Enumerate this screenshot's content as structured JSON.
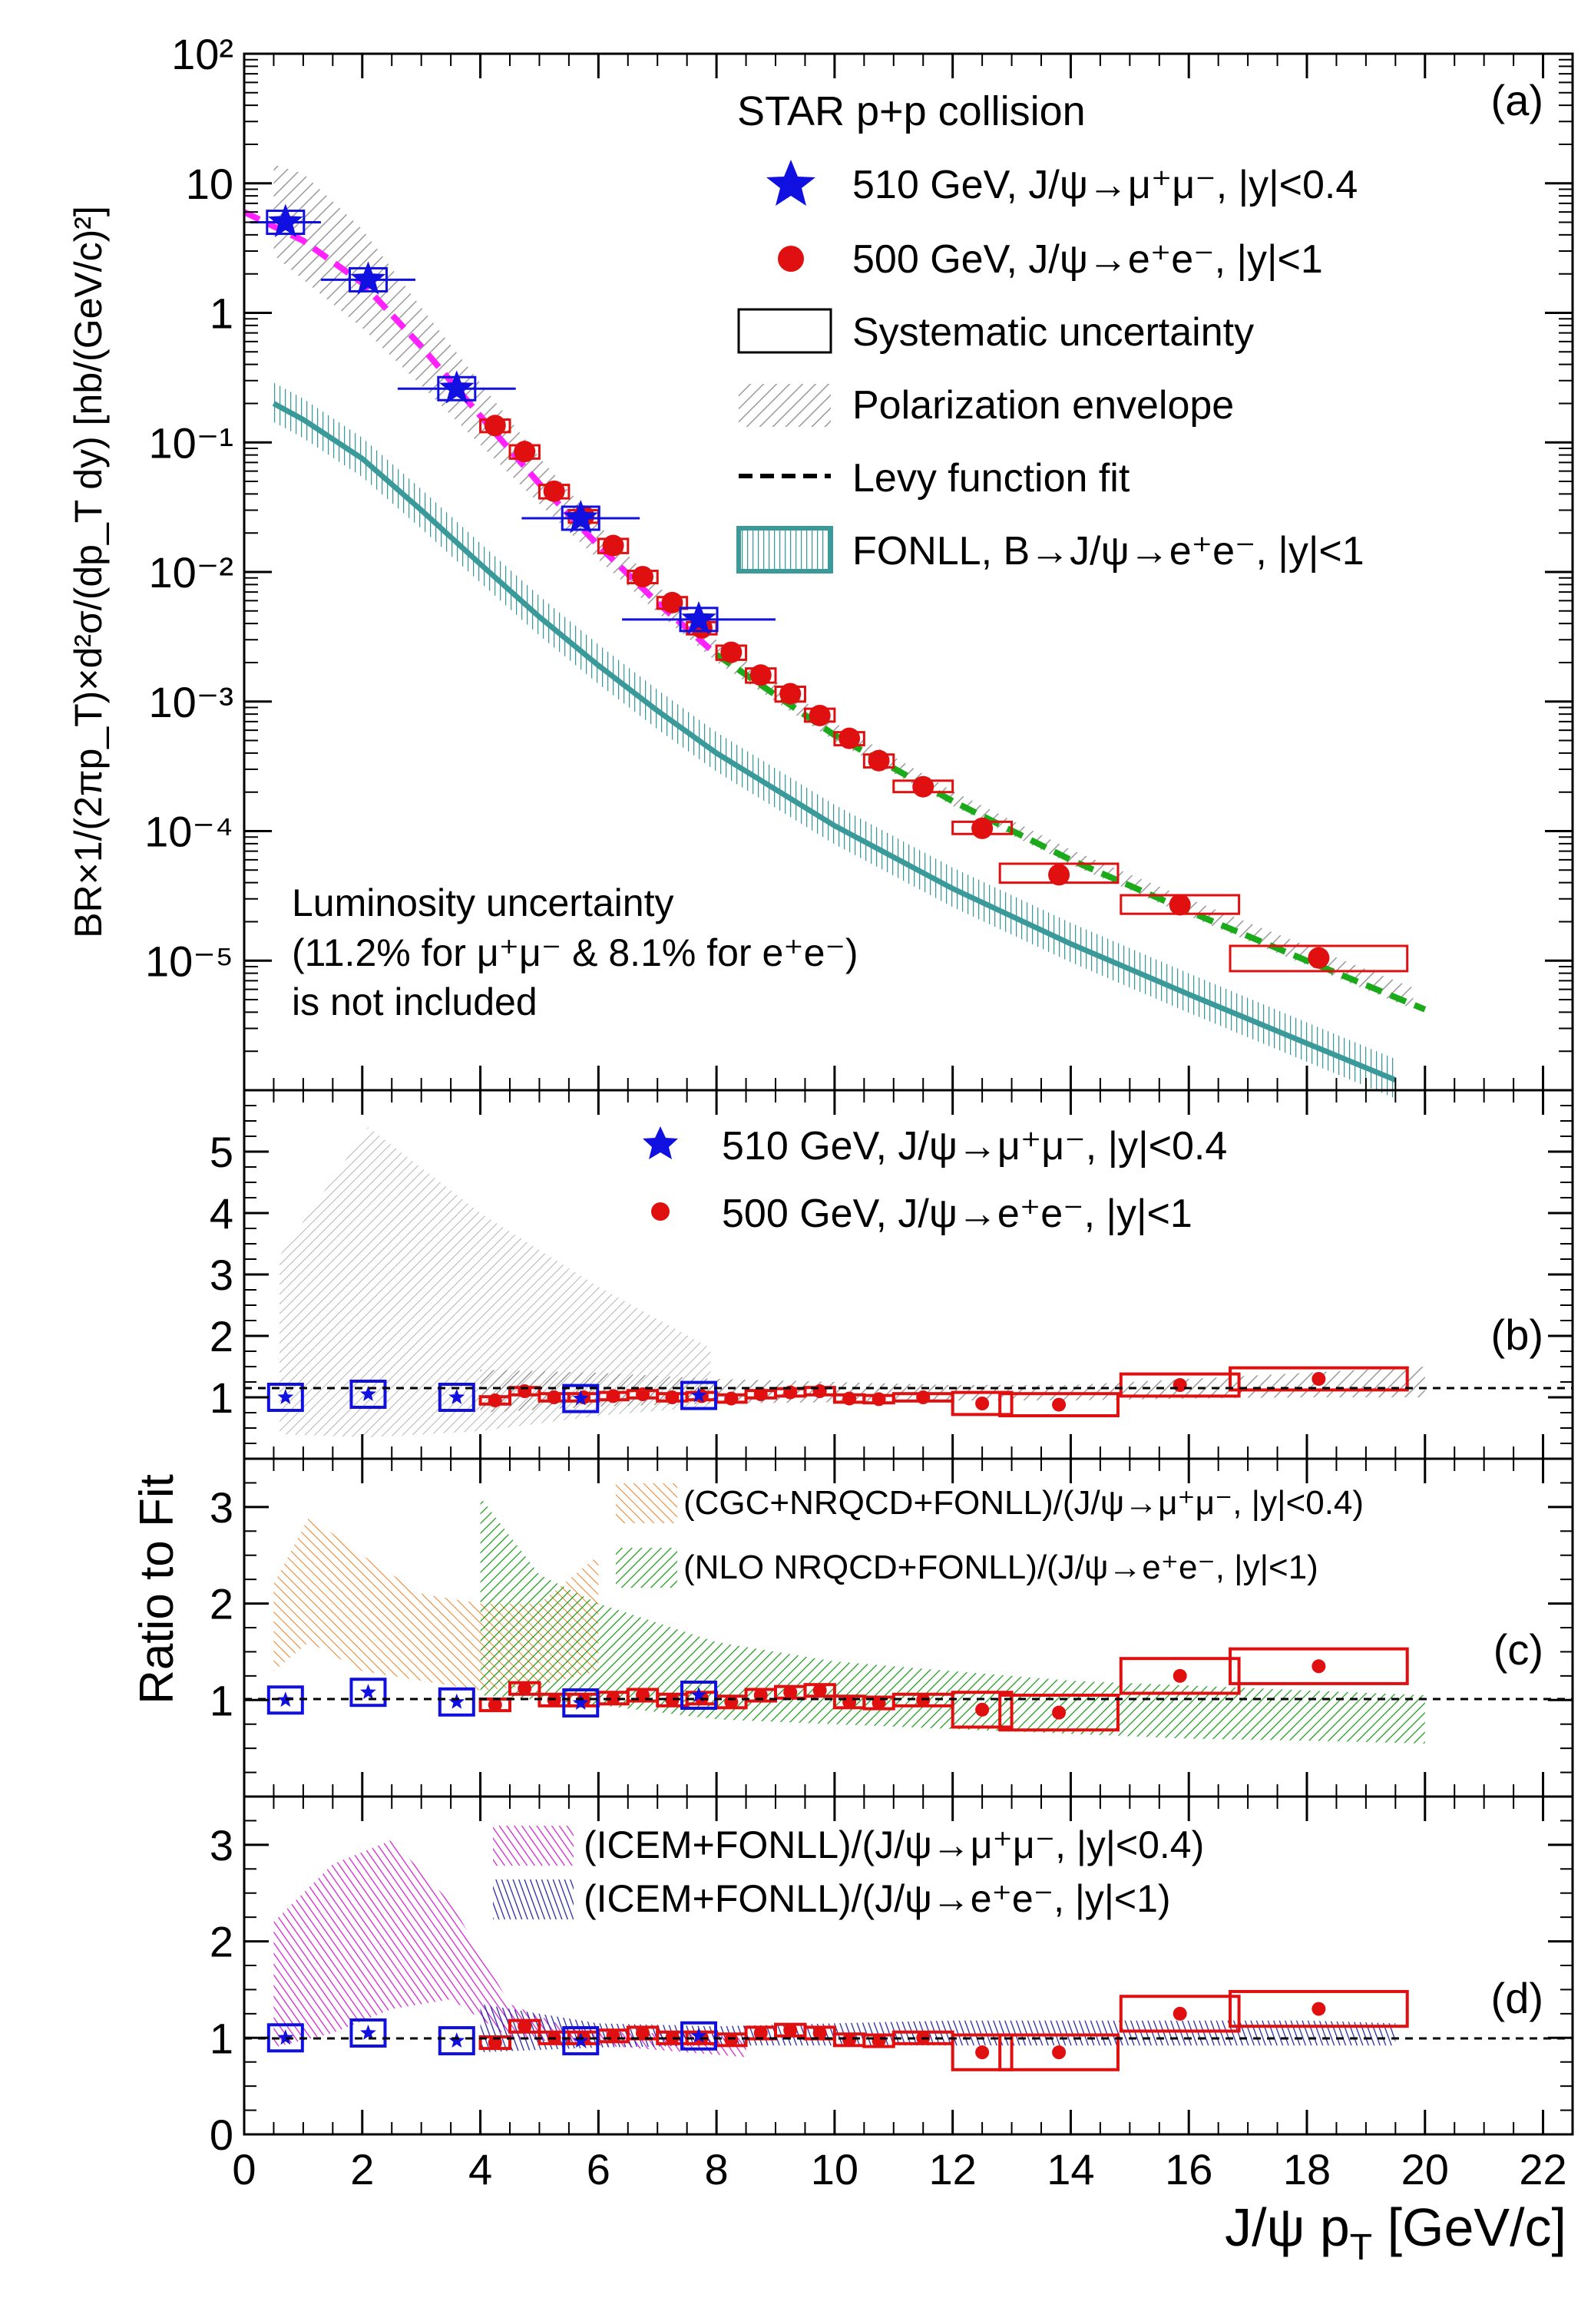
{
  "chart_data": [
    {
      "panel_label": "(a)",
      "type": "scatter",
      "yscale": "log",
      "ylim": [
        1e-06,
        100
      ],
      "xlim": [
        0,
        22.5
      ],
      "ylabel": "BR×1/(2πp_T)×d²σ/(dp_T dy) [nb/(GeV/c)²]",
      "legend_title": "STAR p+p collision",
      "legend": [
        "510 GeV, J/ψ→μ⁺μ⁻, |y|<0.4",
        "500 GeV, J/ψ→e⁺e⁻, |y|<1",
        "Systematic uncertainty",
        "Polarization envelope",
        "Levy function fit",
        "FONLL, B→J/ψ→e⁺e⁻, |y|<1"
      ],
      "note": [
        "Luminosity uncertainty",
        "(11.2% for μ⁺μ⁻ & 8.1% for e⁺e⁻)",
        "is not included"
      ],
      "series": [
        {
          "name": "510 GeV, J/ψ→μ⁺μ⁻, |y|<0.4",
          "color": "#1010e0",
          "x": [
            0.7,
            2.1,
            3.6,
            5.7,
            7.7
          ],
          "xerr": [
            0.6,
            0.8,
            1.0,
            1.0,
            1.3
          ],
          "y": [
            5.0,
            1.8,
            0.26,
            0.026,
            0.0043
          ]
        },
        {
          "name": "500 GeV, J/ψ→e⁺e⁻, |y|<1",
          "color": "#e01010",
          "x": [
            4.25,
            4.75,
            5.25,
            5.75,
            6.25,
            6.75,
            7.25,
            7.75,
            8.25,
            8.75,
            9.25,
            9.75,
            10.25,
            10.75,
            11.5,
            12.5,
            13.8,
            15.85,
            18.2
          ],
          "xerr": [
            0.25,
            0.25,
            0.25,
            0.25,
            0.25,
            0.25,
            0.25,
            0.25,
            0.25,
            0.25,
            0.25,
            0.25,
            0.25,
            0.25,
            0.5,
            0.5,
            1.0,
            1.0,
            1.5
          ],
          "y": [
            0.135,
            0.085,
            0.042,
            0.027,
            0.016,
            0.0092,
            0.0058,
            0.0037,
            0.0024,
            0.0016,
            0.00115,
            0.00078,
            0.00052,
            0.00035,
            0.00022,
            0.000105,
            4.6e-05,
            2.7e-05,
            1.05e-05
          ],
          "syst_lo": [
            0.12,
            0.075,
            0.037,
            0.024,
            0.014,
            0.0082,
            0.0052,
            0.0033,
            0.0021,
            0.0014,
            0.001,
            0.0007,
            0.00046,
            0.00031,
            0.0002,
            9.5e-05,
            4e-05,
            2.3e-05,
            8.3e-06
          ],
          "syst_hi": [
            0.15,
            0.095,
            0.047,
            0.03,
            0.018,
            0.0102,
            0.0064,
            0.0041,
            0.0027,
            0.0018,
            0.0013,
            0.00088,
            0.00058,
            0.00039,
            0.000245,
            0.000118,
            5.6e-05,
            3.2e-05,
            1.3e-05
          ]
        },
        {
          "name": "Levy function fit (magenta)",
          "color": "#ff22ff",
          "x": [
            0,
            1,
            2,
            3,
            4,
            5,
            6,
            7,
            8
          ],
          "y": [
            6.0,
            3.6,
            1.7,
            0.55,
            0.16,
            0.048,
            0.016,
            0.0058,
            0.0023
          ]
        },
        {
          "name": "Levy function fit (green)",
          "color": "#1aaa1a",
          "x": [
            8,
            10,
            12,
            14,
            16,
            18,
            20
          ],
          "y": [
            0.0023,
            0.00055,
            0.00017,
            6e-05,
            2.4e-05,
            1e-05,
            4.2e-06
          ]
        },
        {
          "name": "FONLL, B→J/ψ→e⁺e⁻, |y|<1",
          "color": "#3a9a9a",
          "x": [
            0.5,
            1,
            2,
            3,
            4,
            5,
            6,
            7,
            8,
            10,
            12,
            14,
            16,
            18,
            19.5
          ],
          "y": [
            0.2,
            0.15,
            0.075,
            0.03,
            0.0115,
            0.0045,
            0.0019,
            0.00085,
            0.0004,
            0.00011,
            3.6e-05,
            1.35e-05,
            5.5e-06,
            2.3e-06,
            1.2e-06
          ]
        }
      ]
    },
    {
      "panel_label": "(b)",
      "type": "scatter",
      "ylim": [
        0,
        6
      ],
      "yticks": [
        "1",
        "2",
        "3",
        "4",
        "5"
      ],
      "legend": [
        "510 GeV, J/ψ→μ⁺μ⁻, |y|<0.4",
        "500 GeV, J/ψ→e⁺e⁻, |y|<1"
      ],
      "series": [
        {
          "name": "510 GeV ratio",
          "x": [
            0.7,
            2.1,
            3.6,
            5.7,
            7.7
          ],
          "y": [
            1.0,
            1.05,
            1.0,
            0.98,
            1.03
          ]
        },
        {
          "name": "500 GeV ratio",
          "x": [
            4.25,
            4.75,
            5.25,
            5.75,
            6.25,
            6.75,
            7.25,
            7.75,
            8.25,
            8.75,
            9.25,
            9.75,
            10.25,
            10.75,
            11.5,
            12.5,
            13.8,
            15.85,
            18.2
          ],
          "y": [
            0.95,
            1.1,
            1.0,
            1.0,
            1.02,
            1.05,
            1.0,
            1.02,
            0.98,
            1.05,
            1.08,
            1.1,
            0.98,
            0.97,
            1.0,
            0.9,
            0.88,
            1.2,
            1.3
          ]
        }
      ],
      "bands": [
        {
          "name": "Polarization envelope (510 GeV)",
          "x": [
            0.6,
            2.1,
            4.0,
            6.0,
            7.9
          ],
          "lo": [
            0.4,
            0.35,
            0.45,
            0.7,
            0.85
          ],
          "hi": [
            3.3,
            5.4,
            4.0,
            2.8,
            1.8
          ]
        },
        {
          "name": "Polarization envelope (500 GeV)",
          "x": [
            4.0,
            6.0,
            8.0,
            10.0,
            12.0,
            14.0,
            16.0,
            18.0,
            20.0
          ],
          "lo": [
            0.75,
            0.85,
            0.9,
            0.92,
            0.95,
            0.95,
            0.98,
            1.0,
            1.0
          ],
          "hi": [
            1.45,
            1.4,
            1.3,
            1.25,
            1.2,
            1.2,
            1.3,
            1.4,
            1.5
          ]
        }
      ]
    },
    {
      "panel_label": "(c)",
      "type": "scatter",
      "ylabel": "Ratio to Fit",
      "ylim": [
        0,
        3.5
      ],
      "yticks": [
        "1",
        "2",
        "3"
      ],
      "legend": [
        "(CGC+NRQCD+FONLL)/(J/ψ→μ⁺μ⁻, |y|<0.4)",
        "(NLO NRQCD+FONLL)/(J/ψ→e⁺e⁻, |y|<1)"
      ],
      "series": [
        {
          "name": "510 GeV ratio",
          "x": [
            0.7,
            2.1,
            3.6,
            5.7,
            7.7
          ],
          "y": [
            1.0,
            1.08,
            0.98,
            0.97,
            1.05
          ]
        },
        {
          "name": "500 GeV ratio",
          "x": [
            4.25,
            4.75,
            5.25,
            5.75,
            6.25,
            6.75,
            7.25,
            7.75,
            8.25,
            8.75,
            9.25,
            9.75,
            10.25,
            10.75,
            11.5,
            12.5,
            13.8,
            15.85,
            18.2
          ],
          "y": [
            0.95,
            1.12,
            1.0,
            1.0,
            1.02,
            1.05,
            1.0,
            1.02,
            0.98,
            1.05,
            1.08,
            1.1,
            0.98,
            0.97,
            1.0,
            0.9,
            0.87,
            1.25,
            1.35
          ]
        }
      ],
      "bands": [
        {
          "name": "(CGC+NRQCD+FONLL)/(J/ψ→μ⁺μ⁻, |y|<0.4)",
          "color": "#f08020",
          "x": [
            0.5,
            1.1,
            2.0,
            3.0,
            4.0,
            5.0,
            6.0
          ],
          "lo": [
            1.3,
            1.6,
            1.3,
            1.2,
            1.1,
            1.15,
            1.3
          ],
          "hi": [
            2.2,
            2.9,
            2.5,
            2.1,
            2.0,
            2.0,
            2.5
          ]
        },
        {
          "name": "(NLO NRQCD+FONLL)/(J/ψ→e⁺e⁻, |y|<1)",
          "color": "#1a9a1a",
          "x": [
            4.0,
            5.0,
            6.0,
            8.0,
            10.0,
            12.0,
            14.0,
            16.0,
            18.0,
            20.0
          ],
          "lo": [
            1.05,
            1.0,
            0.95,
            0.8,
            0.75,
            0.7,
            0.65,
            0.6,
            0.58,
            0.55
          ],
          "hi": [
            3.1,
            2.3,
            2.0,
            1.6,
            1.4,
            1.3,
            1.2,
            1.15,
            1.1,
            1.05
          ]
        }
      ]
    },
    {
      "panel_label": "(d)",
      "type": "scatter",
      "xlabel": "J/ψ p_T [GeV/c]",
      "xticks": [
        "0",
        "2",
        "4",
        "6",
        "8",
        "10",
        "12",
        "14",
        "16",
        "18",
        "20",
        "22"
      ],
      "ylim": [
        0,
        3.5
      ],
      "yticks": [
        "0",
        "1",
        "2",
        "3"
      ],
      "legend": [
        "(ICEM+FONLL)/(J/ψ→μ⁺μ⁻, |y|<0.4)",
        "(ICEM+FONLL)/(J/ψ→e⁺e⁻, |y|<1)"
      ],
      "series": [
        {
          "name": "510 GeV ratio",
          "x": [
            0.7,
            2.1,
            3.6,
            5.7,
            7.7
          ],
          "y": [
            1.0,
            1.05,
            0.97,
            0.97,
            1.02
          ]
        },
        {
          "name": "500 GeV ratio",
          "x": [
            4.25,
            4.75,
            5.25,
            5.75,
            6.25,
            6.75,
            7.25,
            7.75,
            8.25,
            8.75,
            9.25,
            9.75,
            10.25,
            10.75,
            11.5,
            12.5,
            13.8,
            15.85,
            18.2
          ],
          "y": [
            0.95,
            1.12,
            1.0,
            1.0,
            1.02,
            1.05,
            1.0,
            1.0,
            0.98,
            1.05,
            1.08,
            1.05,
            0.98,
            0.97,
            1.0,
            0.85,
            0.85,
            1.25,
            1.3
          ]
        }
      ],
      "bands": [
        {
          "name": "(ICEM+FONLL)/(J/ψ→μ⁺μ⁻, |y|<0.4)",
          "color": "#d020d0",
          "x": [
            0.5,
            1.5,
            2.5,
            3.5,
            4.5,
            5.5,
            6.5,
            7.5,
            8.5
          ],
          "lo": [
            0.9,
            1.05,
            1.3,
            1.4,
            1.0,
            0.95,
            0.9,
            0.85,
            0.8
          ],
          "hi": [
            2.2,
            2.8,
            3.05,
            2.4,
            1.35,
            1.1,
            1.05,
            1.05,
            1.0
          ]
        },
        {
          "name": "(ICEM+FONLL)/(J/ψ→e⁺e⁻, |y|<1)",
          "color": "#2020a0",
          "x": [
            4.0,
            6.0,
            8.0,
            10.0,
            12.0,
            14.0,
            16.0,
            18.0,
            19.5
          ],
          "lo": [
            0.85,
            0.9,
            0.92,
            0.92,
            0.92,
            0.92,
            0.92,
            0.92,
            0.92
          ],
          "hi": [
            1.35,
            1.15,
            1.12,
            1.15,
            1.18,
            1.18,
            1.18,
            1.18,
            1.15
          ]
        }
      ]
    }
  ]
}
